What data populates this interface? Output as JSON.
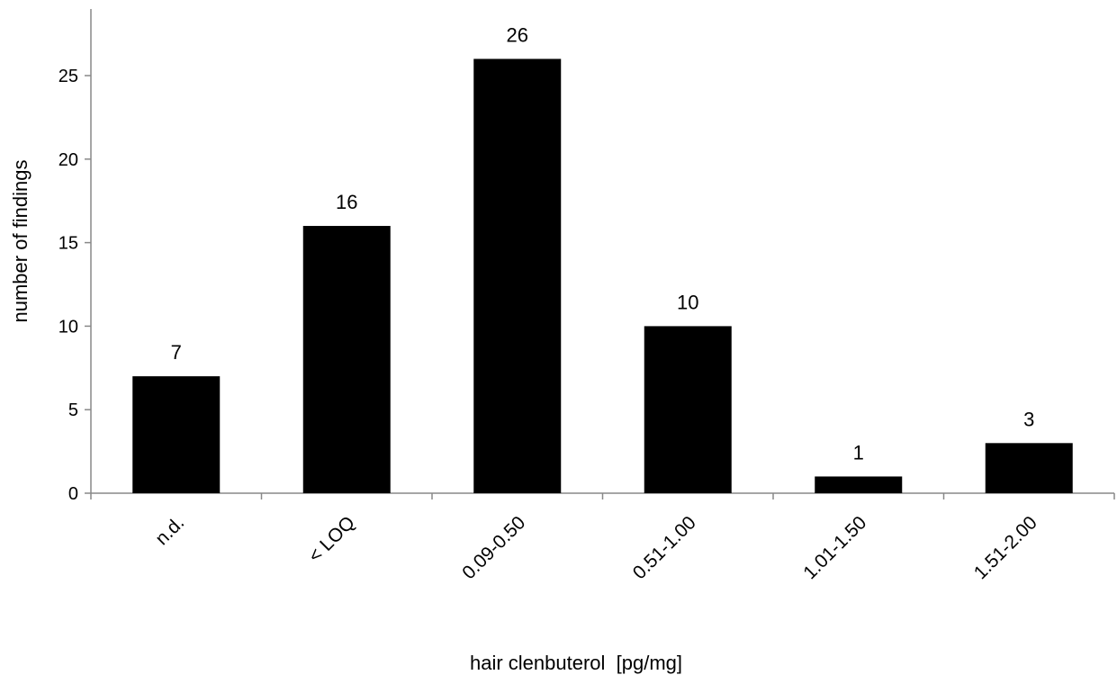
{
  "chart_data": {
    "type": "bar",
    "categories": [
      "n.d.",
      "< LOQ",
      "0.09-0.50",
      "0.51-1.00",
      "1.01-1.50",
      "1.51-2.00"
    ],
    "values": [
      7,
      16,
      26,
      10,
      1,
      3
    ],
    "data_labels": [
      "7",
      "16",
      "26",
      "10",
      "1",
      "3"
    ],
    "xlabel": "hair clenbuterol  [pg/mg]",
    "ylabel": "number of findings",
    "ylim": [
      0,
      25
    ],
    "yticks": [
      0,
      5,
      10,
      15,
      20,
      25
    ],
    "bar_color": "#000000",
    "axis_color": "#888888",
    "grid": false,
    "legend": "none"
  }
}
